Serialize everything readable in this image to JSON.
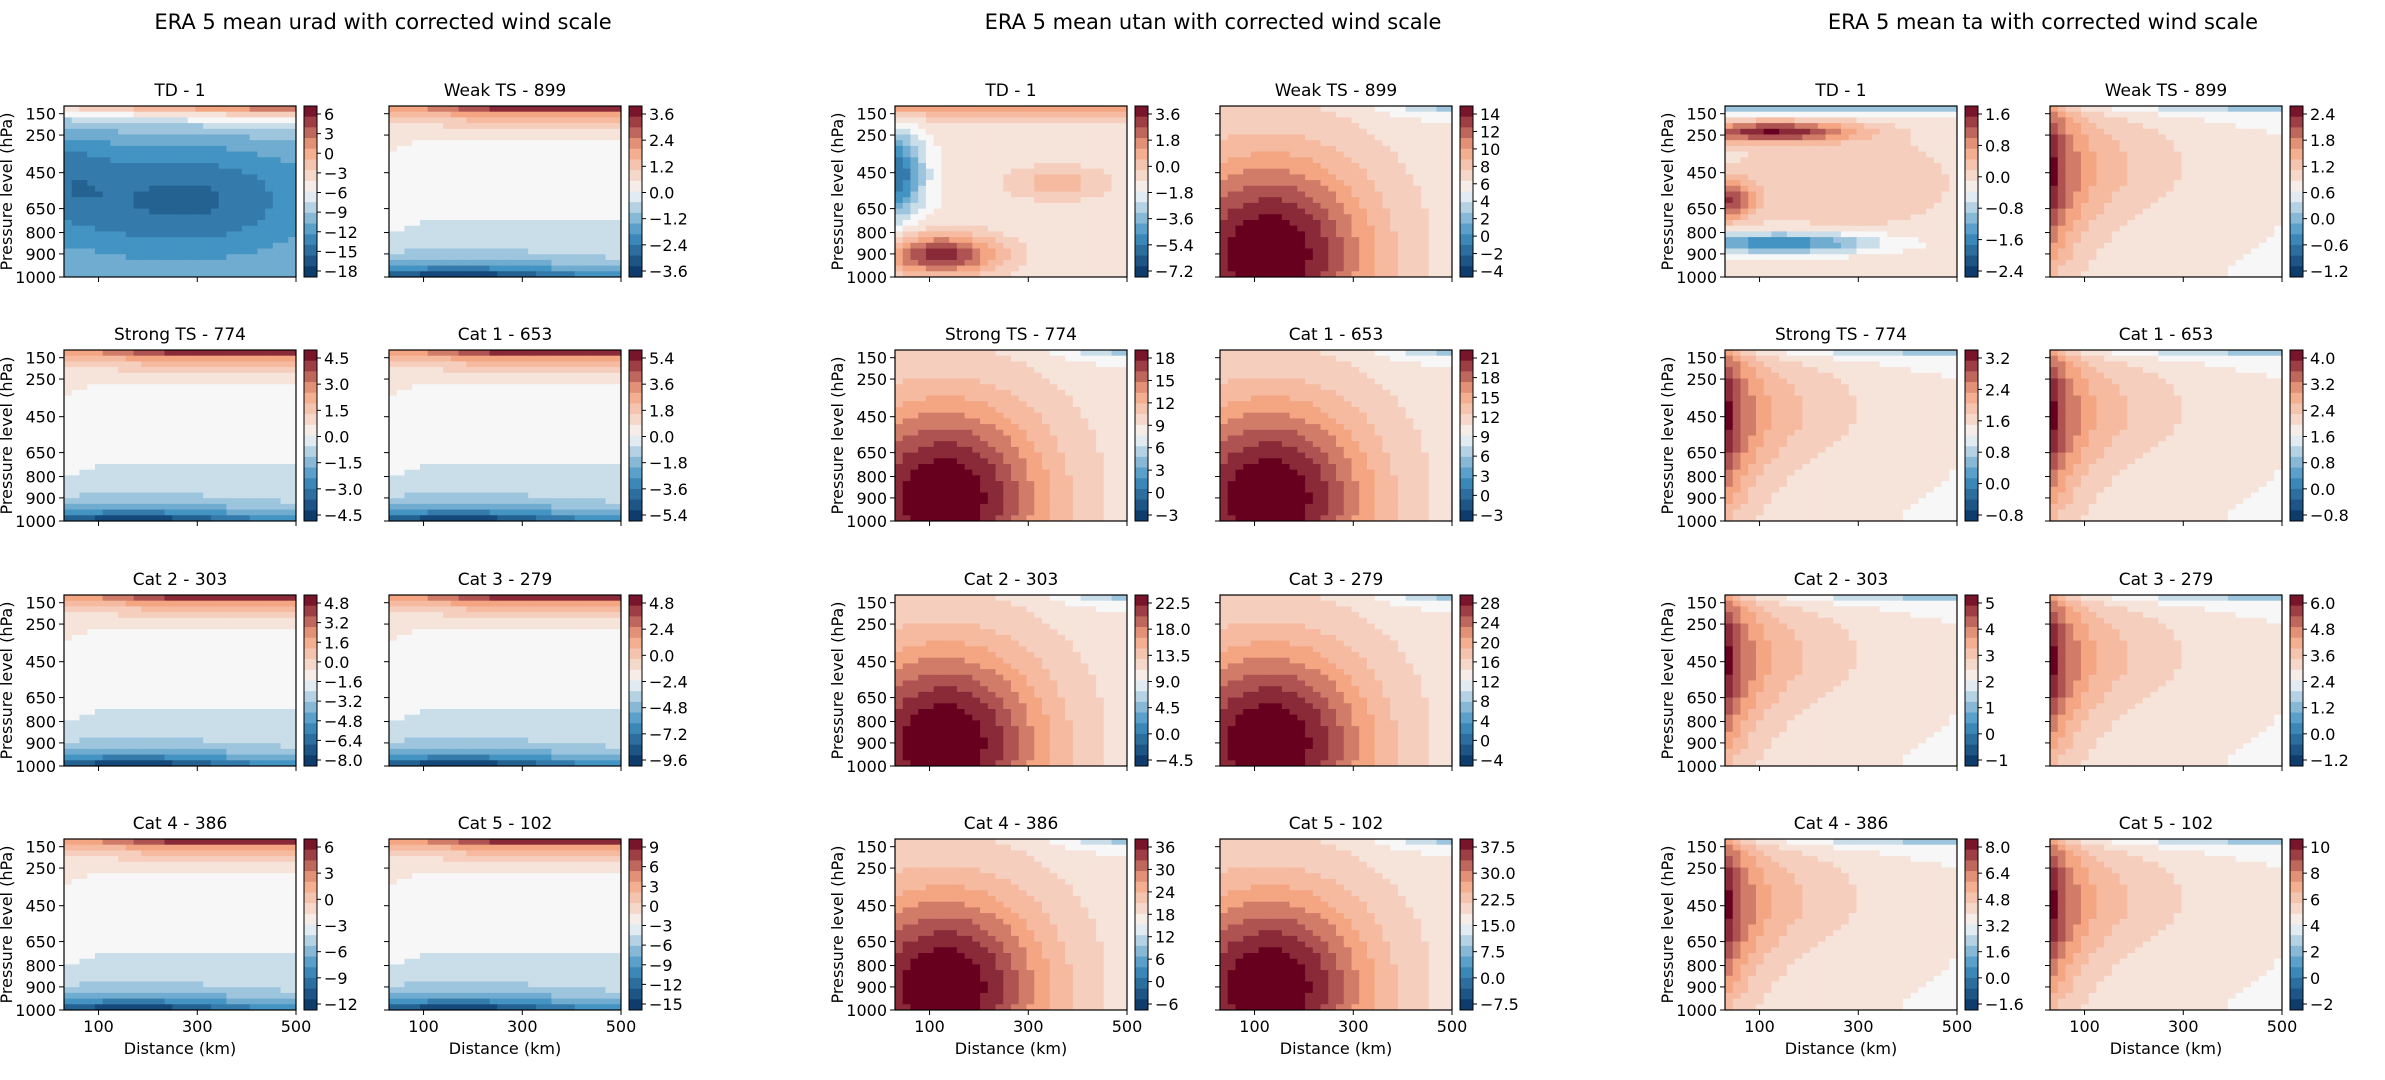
{
  "colors": {
    "negative_end": "#053061",
    "negative_mid": "#4393c3",
    "zero": "#f7f7f7",
    "positive_mid": "#f4a582",
    "positive_end": "#67001f"
  },
  "chart_data": [
    {
      "type": "heatmap",
      "title": "ERA 5 mean urad with corrected wind scale",
      "xlabel": "Distance (km)",
      "ylabel": "Pressure level (hPa)",
      "x_ticks": [
        100,
        300,
        500
      ],
      "y_ticks": [
        150,
        250,
        450,
        650,
        800,
        900,
        1000
      ],
      "panels": [
        {
          "title": "TD - 1",
          "colorbar_ticks": [
            "6",
            "3",
            "0",
            "−3",
            "−6",
            "−9",
            "−12",
            "−15",
            "−18"
          ]
        },
        {
          "title": "Weak TS - 899",
          "colorbar_ticks": [
            "3.6",
            "2.4",
            "1.2",
            "0.0",
            "−1.2",
            "−2.4",
            "−3.6"
          ]
        },
        {
          "title": "Strong TS - 774",
          "colorbar_ticks": [
            "4.5",
            "3.0",
            "1.5",
            "0.0",
            "−1.5",
            "−3.0",
            "−4.5"
          ]
        },
        {
          "title": "Cat 1 - 653",
          "colorbar_ticks": [
            "5.4",
            "3.6",
            "1.8",
            "0.0",
            "−1.8",
            "−3.6",
            "−5.4"
          ]
        },
        {
          "title": "Cat 2 - 303",
          "colorbar_ticks": [
            "4.8",
            "3.2",
            "1.6",
            "0.0",
            "−1.6",
            "−3.2",
            "−4.8",
            "−6.4",
            "−8.0"
          ]
        },
        {
          "title": "Cat 3 - 279",
          "colorbar_ticks": [
            "4.8",
            "2.4",
            "0.0",
            "−2.4",
            "−4.8",
            "−7.2",
            "−9.6"
          ]
        },
        {
          "title": "Cat 4 - 386",
          "colorbar_ticks": [
            "6",
            "3",
            "0",
            "−3",
            "−6",
            "−9",
            "−12"
          ]
        },
        {
          "title": "Cat 5 - 102",
          "colorbar_ticks": [
            "9",
            "6",
            "3",
            "0",
            "−3",
            "−6",
            "−9",
            "−12",
            "−15"
          ]
        }
      ]
    },
    {
      "type": "heatmap",
      "title": "ERA 5 mean utan with corrected wind scale",
      "xlabel": "Distance (km)",
      "ylabel": "Pressure level (hPa)",
      "x_ticks": [
        100,
        300,
        500
      ],
      "y_ticks": [
        150,
        250,
        450,
        650,
        800,
        900,
        1000
      ],
      "panels": [
        {
          "title": "TD - 1",
          "colorbar_ticks": [
            "3.6",
            "1.8",
            "0.0",
            "−1.8",
            "−3.6",
            "−5.4",
            "−7.2"
          ]
        },
        {
          "title": "Weak TS - 899",
          "colorbar_ticks": [
            "14",
            "12",
            "10",
            "8",
            "6",
            "4",
            "2",
            "0",
            "−2",
            "−4"
          ]
        },
        {
          "title": "Strong TS - 774",
          "colorbar_ticks": [
            "18",
            "15",
            "12",
            "9",
            "6",
            "3",
            "0",
            "−3"
          ]
        },
        {
          "title": "Cat 1 - 653",
          "colorbar_ticks": [
            "21",
            "18",
            "15",
            "12",
            "9",
            "6",
            "3",
            "0",
            "−3"
          ]
        },
        {
          "title": "Cat 2 - 303",
          "colorbar_ticks": [
            "22.5",
            "18.0",
            "13.5",
            "9.0",
            "4.5",
            "0.0",
            "−4.5"
          ]
        },
        {
          "title": "Cat 3 - 279",
          "colorbar_ticks": [
            "28",
            "24",
            "20",
            "16",
            "12",
            "8",
            "4",
            "0",
            "−4"
          ]
        },
        {
          "title": "Cat 4 - 386",
          "colorbar_ticks": [
            "36",
            "30",
            "24",
            "18",
            "12",
            "6",
            "0",
            "−6"
          ]
        },
        {
          "title": "Cat 5 - 102",
          "colorbar_ticks": [
            "37.5",
            "30.0",
            "22.5",
            "15.0",
            "7.5",
            "0.0",
            "−7.5"
          ]
        }
      ]
    },
    {
      "type": "heatmap",
      "title": "ERA 5 mean ta with corrected wind scale",
      "xlabel": "Distance (km)",
      "ylabel": "Pressure level (hPa)",
      "x_ticks": [
        100,
        300,
        500
      ],
      "y_ticks": [
        150,
        250,
        450,
        650,
        800,
        900,
        1000
      ],
      "panels": [
        {
          "title": "TD - 1",
          "colorbar_ticks": [
            "1.6",
            "0.8",
            "0.0",
            "−0.8",
            "−1.6",
            "−2.4"
          ]
        },
        {
          "title": "Weak TS - 899",
          "colorbar_ticks": [
            "2.4",
            "1.8",
            "1.2",
            "0.6",
            "0.0",
            "−0.6",
            "−1.2"
          ]
        },
        {
          "title": "Strong TS - 774",
          "colorbar_ticks": [
            "3.2",
            "2.4",
            "1.6",
            "0.8",
            "0.0",
            "−0.8"
          ]
        },
        {
          "title": "Cat 1 - 653",
          "colorbar_ticks": [
            "4.0",
            "3.2",
            "2.4",
            "1.6",
            "0.8",
            "0.0",
            "−0.8"
          ]
        },
        {
          "title": "Cat 2 - 303",
          "colorbar_ticks": [
            "5",
            "4",
            "3",
            "2",
            "1",
            "0",
            "−1"
          ]
        },
        {
          "title": "Cat 3 - 279",
          "colorbar_ticks": [
            "6.0",
            "4.8",
            "3.6",
            "2.4",
            "1.2",
            "0.0",
            "−1.2"
          ]
        },
        {
          "title": "Cat 4 - 386",
          "colorbar_ticks": [
            "8.0",
            "6.4",
            "4.8",
            "3.2",
            "1.6",
            "0.0",
            "−1.6"
          ]
        },
        {
          "title": "Cat 5 - 102",
          "colorbar_ticks": [
            "10",
            "8",
            "6",
            "4",
            "2",
            "0",
            "−2"
          ]
        }
      ]
    }
  ]
}
